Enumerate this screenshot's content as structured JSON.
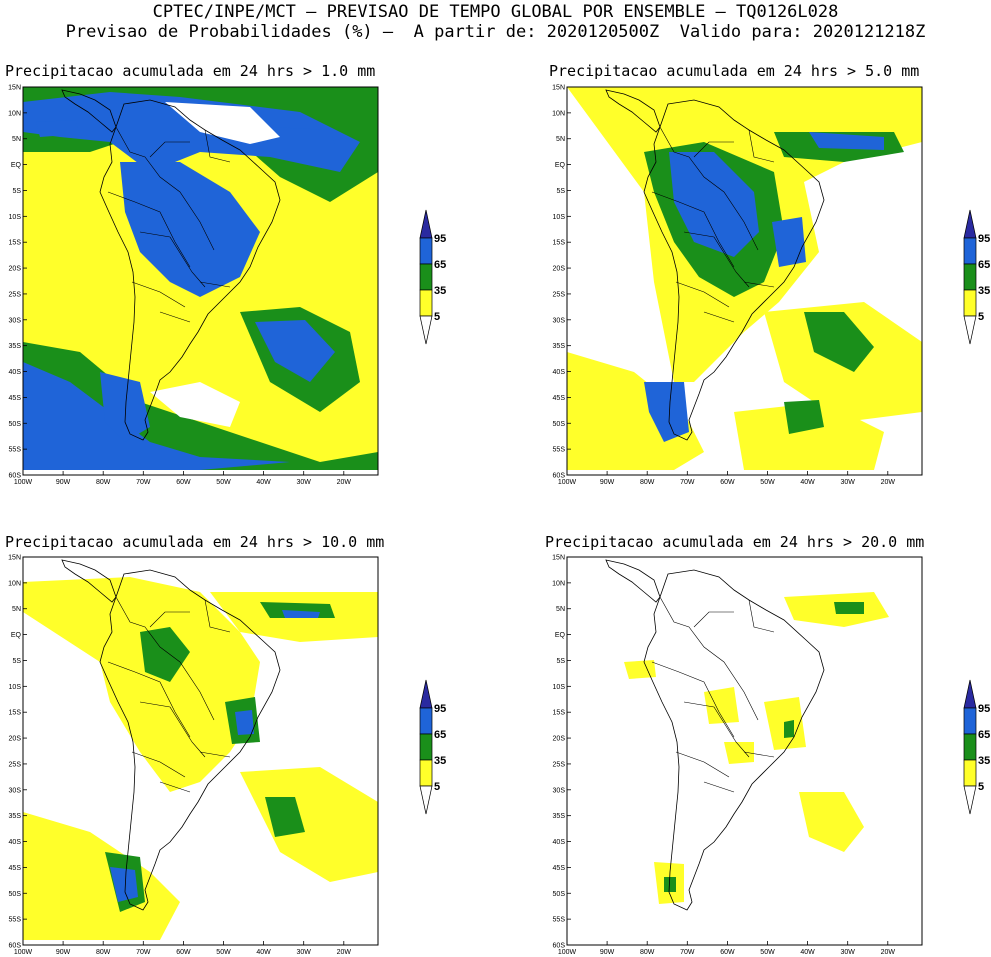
{
  "header": {
    "line1": "CPTEC/INPE/MCT – PREVISAO DE TEMPO GLOBAL POR ENSEMBLE – TQ0126L028",
    "line2": "Previsao de Probabilidades (%) –  A partir de: 2020120500Z  Valido para: 2020121218Z"
  },
  "panels": [
    {
      "title": "Precipitacao acumulada em 24 hrs > 1.0 mm"
    },
    {
      "title": "Precipitacao acumulada em 24 hrs > 5.0 mm"
    },
    {
      "title": "Precipitacao acumulada em 24 hrs > 10.0 mm"
    },
    {
      "title": "Precipitacao acumulada em 24 hrs > 20.0 mm"
    }
  ],
  "lat_labels": [
    "15N",
    "10N",
    "5N",
    "EQ",
    "5S",
    "10S",
    "15S",
    "20S",
    "25S",
    "30S",
    "35S",
    "40S",
    "45S",
    "50S",
    "55S",
    "60S"
  ],
  "lon_labels": [
    "100W",
    "90W",
    "80W",
    "70W",
    "60W",
    "50W",
    "40W",
    "30W",
    "20W"
  ],
  "colorbar": {
    "levels": [
      "95",
      "65",
      "35",
      "5"
    ],
    "colors": {
      "over95": "#2a2aa0",
      "c65_95": "#1f64d8",
      "c35_65": "#1a8f1a",
      "c5_35": "#ffff2a",
      "below5": "#ffffff"
    }
  }
}
